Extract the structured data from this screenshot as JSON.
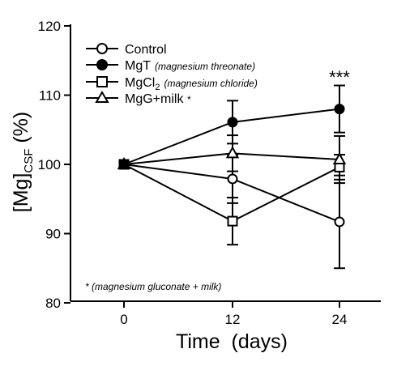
{
  "chart_data": {
    "type": "line",
    "title": "",
    "xlabel": "Time  (days)",
    "ylabel_main": "[Mg]",
    "ylabel_sub": "CSF",
    "ylabel_unit": " (%)",
    "x": [
      0,
      12,
      24
    ],
    "xticks": [
      "0",
      "12",
      "24"
    ],
    "ylim": [
      80,
      120
    ],
    "yticks": [
      "80",
      "90",
      "100",
      "110",
      "120"
    ],
    "grid": false,
    "legend_position": "top-left",
    "series": [
      {
        "name": "Control",
        "note": "",
        "marker": "open-circle",
        "values": [
          100,
          97.9,
          91.7
        ],
        "error": [
          0,
          3.5,
          6.7
        ]
      },
      {
        "name": "MgT",
        "note": "(magnesium threonate)",
        "marker": "filled-circle",
        "values": [
          100,
          106.1,
          108.0
        ],
        "error": [
          0,
          3.1,
          3.4
        ]
      },
      {
        "name_main": "MgCl",
        "name_sub": "2",
        "note": "(magnesium chloride)",
        "marker": "open-square",
        "values": [
          100,
          91.8,
          99.6
        ],
        "error": [
          0,
          3.4,
          1.8
        ]
      },
      {
        "name": "MgG+milk",
        "note": "*",
        "marker": "open-triangle",
        "values": [
          100,
          101.6,
          100.7
        ],
        "error": [
          0,
          2.6,
          3.4
        ]
      }
    ],
    "annotations": [
      {
        "text": "***",
        "x": 24
      }
    ],
    "footnote": "* (magnesium gluconate + milk)"
  }
}
